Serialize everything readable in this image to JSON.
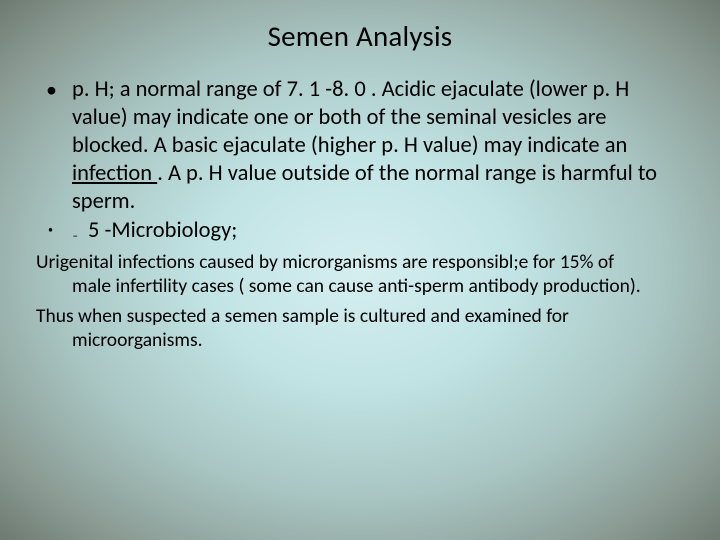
{
  "title": "Semen Analysis",
  "bullet1_part1": "p. H;  a normal range of 7. 1 -8. 0 ",
  "bullet1_part2": ". Acidic ejaculate (lower p. H value) may indicate one or both of the seminal vesicles are blocked. A basic ejaculate (higher p. H value) may indicate an ",
  "bullet1_underlined": "infection ",
  "bullet1_part3": ". A p. H value outside of the normal range is harmful to sperm",
  "bullet1_part4": ".",
  "sub_bullet_text": "5 -Microbiology;",
  "para1_line1": "Urigenital infections caused by  microrganisms are responsibl;e for 15% of",
  "para1_line2": "male infertility cases ( some can cause anti-sperm antibody production).",
  "para2_line1": "Thus when suspected a semen sample is cultured and examined for",
  "para2_line2": "microorganisms.",
  "colors": {
    "bg_center": "#d5eef0",
    "bg_mid": "#a8c5c2",
    "bg_edge": "#6d7a70",
    "text": "#000000"
  },
  "typography": {
    "title_fontsize": 29,
    "body_fontsize": 22.5,
    "para_fontsize": 19.5,
    "font_family": "Calibri"
  }
}
